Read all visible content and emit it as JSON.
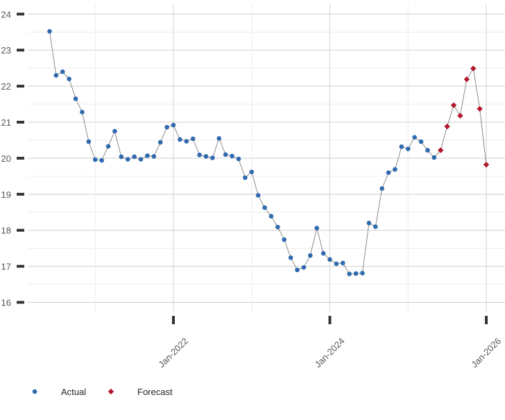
{
  "chart_data": {
    "type": "line",
    "title": "",
    "xlabel": "",
    "ylabel": "",
    "x_ticks": [
      "Jan-2022",
      "Jan-2024",
      "Jan-2026"
    ],
    "y_ticks": [
      "16",
      "17",
      "18",
      "19",
      "20",
      "21",
      "22",
      "23",
      "24"
    ],
    "ylim": [
      15.7,
      24.3
    ],
    "xlim": [
      "2020-05",
      "2026-05"
    ],
    "grid": true,
    "legend_position": "bottom-left",
    "series": [
      {
        "name": "Actual",
        "color": "#2F6AAE",
        "marker": "circle",
        "x": [
          "2020-06",
          "2020-07",
          "2020-08",
          "2020-09",
          "2020-10",
          "2020-11",
          "2020-12",
          "2021-01",
          "2021-02",
          "2021-03",
          "2021-04",
          "2021-05",
          "2021-06",
          "2021-07",
          "2021-08",
          "2021-09",
          "2021-10",
          "2021-11",
          "2021-12",
          "2022-01",
          "2022-02",
          "2022-03",
          "2022-04",
          "2022-05",
          "2022-06",
          "2022-07",
          "2022-08",
          "2022-09",
          "2022-10",
          "2022-11",
          "2022-12",
          "2023-01",
          "2023-02",
          "2023-03",
          "2023-04",
          "2023-05",
          "2023-06",
          "2023-07",
          "2023-08",
          "2023-09",
          "2023-10",
          "2023-11",
          "2023-12",
          "2024-01",
          "2024-02",
          "2024-03",
          "2024-04",
          "2024-05",
          "2024-06",
          "2024-07",
          "2024-08",
          "2024-09",
          "2024-10",
          "2024-11",
          "2024-12",
          "2025-01",
          "2025-02",
          "2025-03",
          "2025-04",
          "2025-05"
        ],
        "values": [
          23.52,
          22.3,
          22.4,
          22.2,
          21.65,
          21.28,
          20.46,
          19.96,
          19.94,
          20.33,
          20.75,
          20.04,
          19.97,
          20.04,
          19.97,
          20.07,
          20.05,
          20.44,
          20.86,
          20.92,
          20.52,
          20.47,
          20.54,
          20.09,
          20.05,
          20.01,
          20.55,
          20.1,
          20.06,
          19.98,
          19.46,
          19.62,
          18.97,
          18.63,
          18.39,
          18.09,
          17.74,
          17.24,
          16.9,
          16.97,
          17.3,
          18.06,
          17.36,
          17.19,
          17.07,
          17.09,
          16.79,
          16.8,
          16.81,
          18.2,
          18.1,
          19.16,
          19.6,
          19.69,
          20.32,
          20.26,
          20.58,
          20.46,
          20.22,
          20.02
        ]
      },
      {
        "name": "Forecast",
        "color": "#B1182C",
        "marker": "diamond",
        "x": [
          "2025-06",
          "2025-07",
          "2025-08",
          "2025-09",
          "2025-10",
          "2025-11",
          "2025-12",
          "2026-01"
        ],
        "values": [
          20.22,
          20.88,
          21.47,
          21.18,
          22.19,
          22.49,
          21.37,
          19.82
        ]
      }
    ]
  }
}
